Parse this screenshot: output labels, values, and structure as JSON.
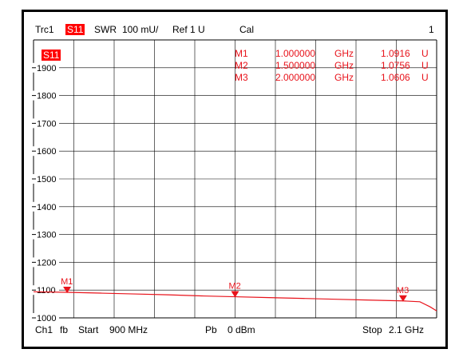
{
  "header": {
    "trace": "Trc1",
    "param": "S11",
    "format": "SWR",
    "scale": "100 mU/",
    "ref": "Ref 1 U",
    "cal": "Cal",
    "channel_index": "1"
  },
  "trace_label": "S11",
  "footer": {
    "channel": "Ch1",
    "mode": "fb",
    "start_label": "Start",
    "start_value": "900 MHz",
    "power_label": "Pb",
    "power_value": "0 dBm",
    "stop_label": "Stop",
    "stop_value": "2.1 GHz"
  },
  "marker_table": [
    {
      "name": "M1",
      "freq": "1.000000",
      "freq_unit": "GHz",
      "value": "1.0916",
      "value_unit": "U"
    },
    {
      "name": "M2",
      "freq": "1.500000",
      "freq_unit": "GHz",
      "value": "1.0756",
      "value_unit": "U"
    },
    {
      "name": "M3",
      "freq": "2.000000",
      "freq_unit": "GHz",
      "value": "1.0606",
      "value_unit": "U"
    }
  ],
  "colors": {
    "trace": "#e8131b",
    "grid": "#000000",
    "background": "#ffffff"
  },
  "chart_data": {
    "type": "line",
    "xlim": [
      0.9,
      2.1
    ],
    "ylim": [
      1000,
      2000
    ],
    "yticks": [
      1000,
      1100,
      1200,
      1300,
      1400,
      1500,
      1600,
      1700,
      1800,
      1900
    ],
    "ytick_labels": [
      "1000",
      "1100",
      "1200",
      "1300",
      "1400",
      "1500",
      "1600",
      "1700",
      "1800",
      "1900"
    ],
    "grid": true,
    "series": [
      {
        "x": [
          0.9,
          1.0,
          1.1,
          1.2,
          1.3,
          1.4,
          1.5,
          1.6,
          1.7,
          1.8,
          1.9,
          2.0,
          2.05,
          2.08,
          2.1
        ],
        "y": [
          1094,
          1092,
          1089,
          1086,
          1083,
          1079,
          1076,
          1073,
          1070,
          1067,
          1064,
          1061,
          1058,
          1040,
          1025
        ]
      }
    ],
    "markers": [
      {
        "label": "M1",
        "x": 1.0,
        "y": 1092
      },
      {
        "label": "M2",
        "x": 1.5,
        "y": 1076
      },
      {
        "label": "M3",
        "x": 2.0,
        "y": 1061
      }
    ]
  }
}
